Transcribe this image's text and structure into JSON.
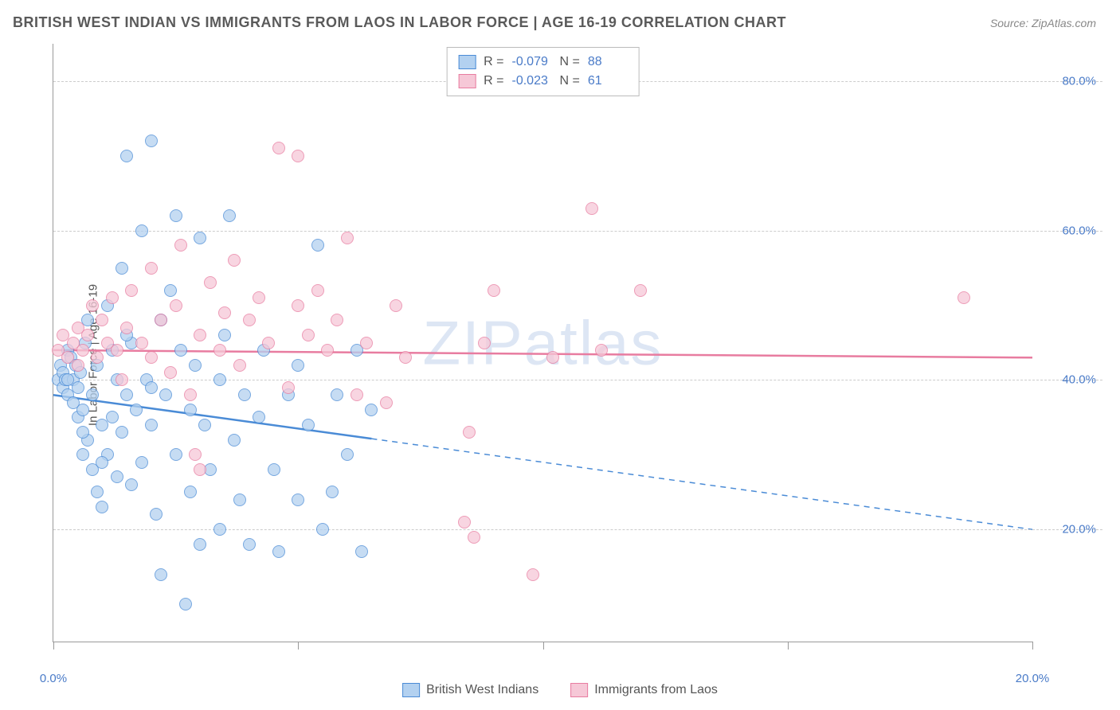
{
  "title": "BRITISH WEST INDIAN VS IMMIGRANTS FROM LAOS IN LABOR FORCE | AGE 16-19 CORRELATION CHART",
  "source": "Source: ZipAtlas.com",
  "watermark": "ZIPatlas",
  "y_label": "In Labor Force | Age 16-19",
  "chart": {
    "type": "scatter",
    "xlim": [
      0,
      20
    ],
    "ylim": [
      5,
      85
    ],
    "x_ticks": [
      0,
      5,
      10,
      15,
      20
    ],
    "x_tick_labels": [
      "0.0%",
      "",
      "",
      "",
      "20.0%"
    ],
    "y_gridlines": [
      20,
      40,
      60,
      80
    ],
    "y_tick_labels": [
      "20.0%",
      "40.0%",
      "60.0%",
      "80.0%"
    ],
    "grid_color": "#cccccc",
    "axis_color": "#999999",
    "background": "#ffffff",
    "tick_label_color": "#4a7bc8",
    "marker_radius": 8,
    "series": [
      {
        "name": "British West Indians",
        "color_stroke": "#4a8bd6",
        "color_fill": "#b3d1f0",
        "R": "-0.079",
        "N": "88",
        "trend": {
          "x1": 0,
          "y1": 38,
          "x2": 20,
          "y2": 20,
          "solid_until_x": 6.5
        },
        "points": [
          [
            0.1,
            40
          ],
          [
            0.15,
            42
          ],
          [
            0.2,
            39
          ],
          [
            0.2,
            41
          ],
          [
            0.25,
            40
          ],
          [
            0.3,
            38
          ],
          [
            0.3,
            44
          ],
          [
            0.35,
            43
          ],
          [
            0.4,
            40
          ],
          [
            0.4,
            37
          ],
          [
            0.45,
            42
          ],
          [
            0.5,
            39
          ],
          [
            0.5,
            35
          ],
          [
            0.55,
            41
          ],
          [
            0.6,
            36
          ],
          [
            0.6,
            30
          ],
          [
            0.65,
            45
          ],
          [
            0.7,
            32
          ],
          [
            0.7,
            48
          ],
          [
            0.8,
            28
          ],
          [
            0.8,
            38
          ],
          [
            0.9,
            25
          ],
          [
            0.9,
            42
          ],
          [
            1.0,
            23
          ],
          [
            1.0,
            34
          ],
          [
            1.1,
            50
          ],
          [
            1.1,
            30
          ],
          [
            1.2,
            35
          ],
          [
            1.2,
            44
          ],
          [
            1.3,
            27
          ],
          [
            1.3,
            40
          ],
          [
            1.4,
            33
          ],
          [
            1.4,
            55
          ],
          [
            1.5,
            70
          ],
          [
            1.5,
            38
          ],
          [
            1.6,
            26
          ],
          [
            1.6,
            45
          ],
          [
            1.7,
            36
          ],
          [
            1.8,
            60
          ],
          [
            1.8,
            29
          ],
          [
            1.9,
            40
          ],
          [
            2.0,
            72
          ],
          [
            2.0,
            34
          ],
          [
            2.1,
            22
          ],
          [
            2.2,
            48
          ],
          [
            2.2,
            14
          ],
          [
            2.3,
            38
          ],
          [
            2.4,
            52
          ],
          [
            2.5,
            62
          ],
          [
            2.5,
            30
          ],
          [
            2.6,
            44
          ],
          [
            2.7,
            10
          ],
          [
            2.8,
            36
          ],
          [
            2.8,
            25
          ],
          [
            2.9,
            42
          ],
          [
            3.0,
            59
          ],
          [
            3.0,
            18
          ],
          [
            3.1,
            34
          ],
          [
            3.2,
            28
          ],
          [
            3.4,
            40
          ],
          [
            3.4,
            20
          ],
          [
            3.5,
            46
          ],
          [
            3.6,
            62
          ],
          [
            3.7,
            32
          ],
          [
            3.8,
            24
          ],
          [
            3.9,
            38
          ],
          [
            4.0,
            18
          ],
          [
            4.2,
            35
          ],
          [
            4.3,
            44
          ],
          [
            4.5,
            28
          ],
          [
            4.6,
            17
          ],
          [
            4.8,
            38
          ],
          [
            5.0,
            24
          ],
          [
            5.0,
            42
          ],
          [
            5.2,
            34
          ],
          [
            5.4,
            58
          ],
          [
            5.5,
            20
          ],
          [
            5.7,
            25
          ],
          [
            5.8,
            38
          ],
          [
            6.0,
            30
          ],
          [
            6.2,
            44
          ],
          [
            6.3,
            17
          ],
          [
            6.5,
            36
          ],
          [
            0.3,
            40
          ],
          [
            0.6,
            33
          ],
          [
            1.0,
            29
          ],
          [
            1.5,
            46
          ],
          [
            2.0,
            39
          ]
        ]
      },
      {
        "name": "Immigrants from Laos",
        "color_stroke": "#e87ca0",
        "color_fill": "#f6c8d7",
        "R": "-0.023",
        "N": "61",
        "trend": {
          "x1": 0,
          "y1": 44,
          "x2": 20,
          "y2": 43,
          "solid_until_x": 20
        },
        "points": [
          [
            0.1,
            44
          ],
          [
            0.2,
            46
          ],
          [
            0.3,
            43
          ],
          [
            0.4,
            45
          ],
          [
            0.5,
            47
          ],
          [
            0.5,
            42
          ],
          [
            0.6,
            44
          ],
          [
            0.7,
            46
          ],
          [
            0.8,
            50
          ],
          [
            0.9,
            43
          ],
          [
            1.0,
            48
          ],
          [
            1.1,
            45
          ],
          [
            1.2,
            51
          ],
          [
            1.3,
            44
          ],
          [
            1.4,
            40
          ],
          [
            1.5,
            47
          ],
          [
            1.6,
            52
          ],
          [
            1.8,
            45
          ],
          [
            2.0,
            43
          ],
          [
            2.0,
            55
          ],
          [
            2.2,
            48
          ],
          [
            2.4,
            41
          ],
          [
            2.5,
            50
          ],
          [
            2.6,
            58
          ],
          [
            2.8,
            38
          ],
          [
            2.9,
            30
          ],
          [
            3.0,
            46
          ],
          [
            3.2,
            53
          ],
          [
            3.4,
            44
          ],
          [
            3.5,
            49
          ],
          [
            3.7,
            56
          ],
          [
            3.8,
            42
          ],
          [
            4.0,
            48
          ],
          [
            4.2,
            51
          ],
          [
            4.4,
            45
          ],
          [
            4.6,
            71
          ],
          [
            4.8,
            39
          ],
          [
            5.0,
            50
          ],
          [
            5.0,
            70
          ],
          [
            5.2,
            46
          ],
          [
            5.4,
            52
          ],
          [
            5.6,
            44
          ],
          [
            5.8,
            48
          ],
          [
            6.0,
            59
          ],
          [
            6.2,
            38
          ],
          [
            6.4,
            45
          ],
          [
            6.8,
            37
          ],
          [
            7.0,
            50
          ],
          [
            7.2,
            43
          ],
          [
            8.4,
            21
          ],
          [
            8.5,
            33
          ],
          [
            8.6,
            19
          ],
          [
            8.8,
            45
          ],
          [
            9.0,
            52
          ],
          [
            9.8,
            14
          ],
          [
            10.2,
            43
          ],
          [
            11.0,
            63
          ],
          [
            11.2,
            44
          ],
          [
            12.0,
            52
          ],
          [
            18.6,
            51
          ],
          [
            3.0,
            28
          ]
        ]
      }
    ]
  },
  "stat_legend_label_R": "R =",
  "stat_legend_label_N": "N =",
  "bottom_legend": [
    "British West Indians",
    "Immigrants from Laos"
  ]
}
